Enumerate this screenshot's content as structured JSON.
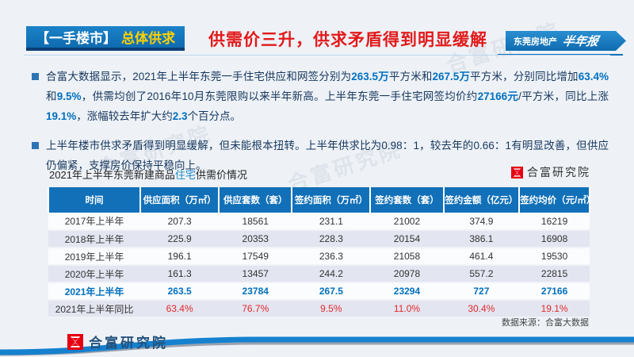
{
  "header": {
    "section_tag": "【一手楼市】",
    "section_sub": "总体供求",
    "title": "供需价三升，供求矛盾得到明显缓解",
    "ribbon": {
      "label": "东莞房地产",
      "script": "半年报"
    }
  },
  "watermark": "合富研究院",
  "bullets": [
    {
      "segments": [
        {
          "t": "合富大数据显示，2021年上半年东莞一手住宅供应和网签分别为",
          "hl": false
        },
        {
          "t": "263.5万",
          "hl": true
        },
        {
          "t": "平方米和",
          "hl": false
        },
        {
          "t": "267.5万",
          "hl": true
        },
        {
          "t": "平方米，分别同比增加",
          "hl": false
        },
        {
          "t": "63.4%",
          "hl": true
        },
        {
          "t": "和",
          "hl": false
        },
        {
          "t": "9.5%",
          "hl": true
        },
        {
          "t": "，供需均创了2016年10月东莞限购以来半年新高。上半年东莞一手住宅网签均价约",
          "hl": false
        },
        {
          "t": "27166元",
          "hl": true
        },
        {
          "t": "/平方米，同比上涨",
          "hl": false
        },
        {
          "t": "19.1%",
          "hl": true
        },
        {
          "t": "，涨幅较去年扩大约",
          "hl": false
        },
        {
          "t": "2.3",
          "hl": true
        },
        {
          "t": "个百分点。",
          "hl": false
        }
      ]
    },
    {
      "segments": [
        {
          "t": "上半年楼市供求矛盾得到明显缓解，但未能根本扭转。上半年供求比为0.98：1，较去年的0.66：1有明显改善，但供应仍偏紧，支撑房价保持平稳向上。",
          "hl": false
        }
      ]
    }
  ],
  "table": {
    "title_prefix": "2021年上半年东莞新建商品",
    "title_highlight": "住宅",
    "title_suffix": "供需价情况",
    "brand": "合富研究院",
    "columns": [
      "时间",
      "供应面积（万㎡）",
      "供应套数（套）",
      "签约面积（万㎡）",
      "签约套数（套）",
      "签约金额（亿元）",
      "签约均价（元/㎡）"
    ],
    "col_widths": [
      "17%",
      "14.5%",
      "13.5%",
      "14.5%",
      "13.5%",
      "14%",
      "13%"
    ],
    "rows": [
      {
        "label": "2017年上半年",
        "values": [
          "207.3",
          "18561",
          "231.1",
          "21002",
          "374.9",
          "16219"
        ],
        "style": "normal"
      },
      {
        "label": "2018年上半年",
        "values": [
          "225.9",
          "20353",
          "228.3",
          "20154",
          "386.1",
          "16908"
        ],
        "style": "normal"
      },
      {
        "label": "2019年上半年",
        "values": [
          "196.1",
          "17549",
          "236.3",
          "21058",
          "461.4",
          "19530"
        ],
        "style": "normal"
      },
      {
        "label": "2020年上半年",
        "values": [
          "161.3",
          "13457",
          "244.2",
          "20978",
          "557.2",
          "22815"
        ],
        "style": "normal"
      },
      {
        "label": "2021年上半年",
        "values": [
          "263.5",
          "23784",
          "267.5",
          "23294",
          "727",
          "27166"
        ],
        "style": "highlight"
      },
      {
        "label": "2021年上半年同比",
        "values": [
          "63.4%",
          "76.7%",
          "9.5%",
          "11.0%",
          "30.4%",
          "19.1%"
        ],
        "style": "yoy"
      }
    ],
    "source": "数据来源：合富大数据"
  },
  "footer": {
    "brand": "合富研究院"
  },
  "colors": {
    "header_blue": "#1172b8",
    "accent_yellow": "#ffd100",
    "title_red": "#e21a1a",
    "body_navy": "#17375e",
    "highlight_blue": "#0070c0",
    "yoy_red": "#e02a2a",
    "logo_red": "#e60012",
    "alt_row": "#e3e5f0"
  }
}
